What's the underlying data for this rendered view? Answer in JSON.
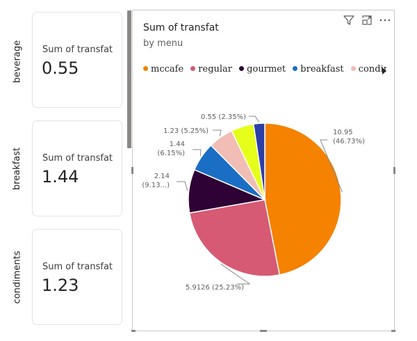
{
  "cards": [
    {
      "category": "beverage",
      "label": "Sum of transfat",
      "value": "0.55"
    },
    {
      "category": "breakfast",
      "label": "Sum of transfat",
      "value": "1.44"
    },
    {
      "category": "condiments",
      "label": "Sum of transfat",
      "value": "1.23"
    }
  ],
  "visual": {
    "title": "Sum of transfat",
    "subtitle": "by menu",
    "icons": [
      "filter-icon",
      "focus-mode-icon",
      "more-options-icon"
    ],
    "legend_overflow_icon": "caret-right-icon",
    "legend_visible": [
      "mccafe",
      "regular",
      "gourmet",
      "breakfast",
      "condim..."
    ]
  },
  "chart_data": {
    "type": "pie",
    "title": "Sum of transfat",
    "subtitle": "by menu",
    "legend_position": "top",
    "slices": [
      {
        "name": "mccafe",
        "value": 10.95,
        "label": "10.95",
        "label_pct": "(46.73%)",
        "color": "#F58200"
      },
      {
        "name": "regular",
        "value": 5.9126,
        "label": "5.9126 (25.23%)",
        "label_pct": "",
        "color": "#D65A74"
      },
      {
        "name": "gourmet",
        "value": 2.14,
        "label": "2.14",
        "label_pct": "(9.13...)",
        "color": "#2E0235"
      },
      {
        "name": "breakfast",
        "value": 1.44,
        "label": "1.44",
        "label_pct": "(6.15%)",
        "color": "#1A6FC4"
      },
      {
        "name": "condiments",
        "value": 1.23,
        "label": "1.23 (5.25%)",
        "label_pct": "",
        "color": "#F1BDB4"
      },
      {
        "name": "",
        "value": 1.12,
        "label": "",
        "label_pct": "",
        "color": "#E5FF1A"
      },
      {
        "name": "beverage",
        "value": 0.55,
        "label": "0.55 (2.35%)",
        "label_pct": "",
        "color": "#2C3FA8"
      }
    ]
  }
}
